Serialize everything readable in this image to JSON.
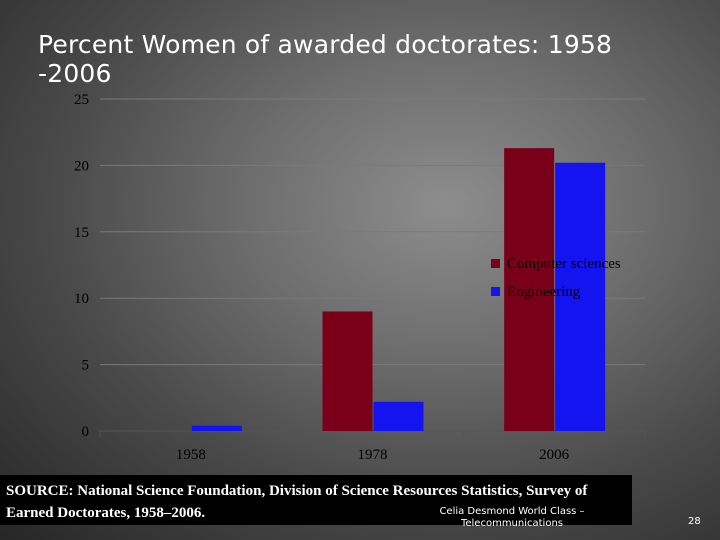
{
  "slide": {
    "title": "Percent Women of awarded doctorates: 1958\n-2006",
    "source": "SOURCE:  National Science Foundation, Division of Science Resources Statistics, Survey of Earned Doctorates, 1958–2006.",
    "footer_author": "Celia Desmond  World Class – Telecommunications",
    "page_number": "28"
  },
  "chart_data": {
    "type": "bar",
    "title": "Percent Women of awarded doctorates: 1958 -2006",
    "categories": [
      "1958",
      "1978",
      "2006"
    ],
    "series": [
      {
        "name": "Computer sciences",
        "values": [
          0,
          9,
          21.3
        ],
        "color": "#7a0019"
      },
      {
        "name": "Engineering",
        "values": [
          0.4,
          2.2,
          20.2
        ],
        "color": "#1414f0"
      }
    ],
    "xlabel": "",
    "ylabel": "",
    "ylim": [
      0,
      25
    ],
    "yticks": [
      "0",
      "5",
      "10",
      "15",
      "20",
      "25"
    ],
    "grid": true,
    "legend_position": "right"
  }
}
